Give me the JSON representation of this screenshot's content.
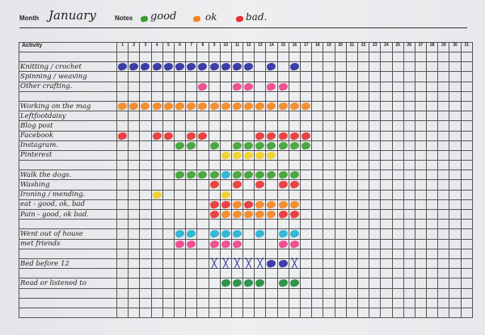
{
  "header": {
    "month_label": "Month",
    "month_value": "January",
    "notes_label": "Notes",
    "legend": [
      {
        "color": "green",
        "text": "good"
      },
      {
        "color": "orange",
        "text": "ok"
      },
      {
        "color": "red",
        "text": "bad."
      }
    ]
  },
  "colors": {
    "blue": "#2a2aa0",
    "pink": "#f0408a",
    "orange": "#f4841e",
    "red": "#e83030",
    "green": "#3aa030",
    "yellow": "#f0d020",
    "cyan": "#20b0d0",
    "darkgreen": "#1a8a3a"
  },
  "table": {
    "activity_header": "Activity",
    "days": [
      "1",
      "2",
      "3",
      "4",
      "5",
      "6",
      "7",
      "8",
      "9",
      "10",
      "11",
      "12",
      "13",
      "14",
      "15",
      "16",
      "17",
      "18",
      "19",
      "20",
      "21",
      "22",
      "23",
      "24",
      "25",
      "26",
      "27",
      "28",
      "29",
      "30",
      "31"
    ],
    "rows": [
      {
        "name": "",
        "marks": {}
      },
      {
        "name": "Knitting / crochet",
        "marks": {
          "1": "blue",
          "2": "blue",
          "3": "blue",
          "4": "blue",
          "5": "blue",
          "6": "blue",
          "7": "blue",
          "8": "blue",
          "9": "blue",
          "10": "blue",
          "11": "blue",
          "12": "blue",
          "14": "blue",
          "16": "blue"
        }
      },
      {
        "name": "Spinning / weaving",
        "marks": {}
      },
      {
        "name": "Other crafting.",
        "marks": {
          "8": "pink",
          "11": "pink",
          "12": "pink",
          "14": "pink",
          "15": "pink"
        }
      },
      {
        "name": "",
        "marks": {}
      },
      {
        "name": "Working on the mag",
        "marks": {
          "1": "orange",
          "2": "orange",
          "3": "orange",
          "4": "orange",
          "5": "orange",
          "6": "orange",
          "7": "orange",
          "8": "orange",
          "9": "orange",
          "10": "orange",
          "11": "orange",
          "12": "orange",
          "13": "orange",
          "14": "orange",
          "15": "orange",
          "16": "orange",
          "17": "orange"
        }
      },
      {
        "name": "Leftfootdaisy",
        "marks": {}
      },
      {
        "name": "Blog post",
        "marks": {}
      },
      {
        "name": "Facebook",
        "marks": {
          "1": "red",
          "4": "red",
          "5": "red",
          "7": "red",
          "8": "red",
          "13": "red",
          "14": "red",
          "15": "red",
          "16": "red",
          "17": "red"
        }
      },
      {
        "name": "Instagram.",
        "marks": {
          "6": "green",
          "7": "green",
          "9": "green",
          "11": "green",
          "12": "green",
          "13": "green",
          "14": "green",
          "15": "green",
          "16": "green",
          "17": "green"
        }
      },
      {
        "name": "Pinterest",
        "marks": {
          "10": "yellow",
          "11": "yellow",
          "12": "yellow",
          "13": "yellow",
          "14": "yellow"
        }
      },
      {
        "name": "",
        "marks": {}
      },
      {
        "name": "Walk the dogs.",
        "marks": {
          "6": "green",
          "7": "green",
          "8": "green",
          "9": "green",
          "10": "cyan",
          "11": "green",
          "12": "green",
          "13": "green",
          "14": "green",
          "15": "green",
          "16": "green"
        }
      },
      {
        "name": "Washing",
        "marks": {
          "9": "red",
          "11": "red",
          "13": "red",
          "15": "red",
          "16": "red"
        }
      },
      {
        "name": "Ironing / mending.",
        "marks": {
          "4": "yellow",
          "10": "yellow"
        }
      },
      {
        "name": "eat - good, ok, bad",
        "marks": {
          "9": "red",
          "10": "red",
          "11": "orange",
          "12": "red",
          "13": "orange",
          "14": "orange",
          "15": "orange",
          "16": "orange"
        }
      },
      {
        "name": "Pain - good, ok bad.",
        "marks": {
          "9": "red",
          "10": "orange",
          "11": "orange",
          "12": "orange",
          "13": "orange",
          "14": "orange",
          "15": "red",
          "16": "red"
        }
      },
      {
        "name": "",
        "marks": {}
      },
      {
        "name": "Went out of house",
        "marks": {
          "6": "cyan",
          "7": "cyan",
          "9": "cyan",
          "10": "cyan",
          "11": "cyan",
          "13": "cyan",
          "15": "cyan",
          "16": "cyan"
        }
      },
      {
        "name": "met friends",
        "marks": {
          "6": "pink",
          "7": "pink",
          "9": "pink",
          "10": "pink",
          "11": "pink",
          "15": "pink",
          "16": "pink"
        }
      },
      {
        "name": "",
        "marks": {}
      },
      {
        "name": "Bed before 12",
        "marks": {
          "9": "x",
          "10": "x",
          "11": "x",
          "12": "x",
          "13": "x",
          "14": "blue",
          "15": "blue",
          "16": "x"
        }
      },
      {
        "name": "",
        "marks": {}
      },
      {
        "name": "Read or listened to",
        "marks": {
          "10": "darkgreen",
          "11": "darkgreen",
          "12": "darkgreen",
          "13": "darkgreen",
          "15": "darkgreen",
          "16": "darkgreen"
        }
      },
      {
        "name": "",
        "marks": {}
      },
      {
        "name": "",
        "marks": {}
      },
      {
        "name": "",
        "marks": {}
      }
    ]
  }
}
